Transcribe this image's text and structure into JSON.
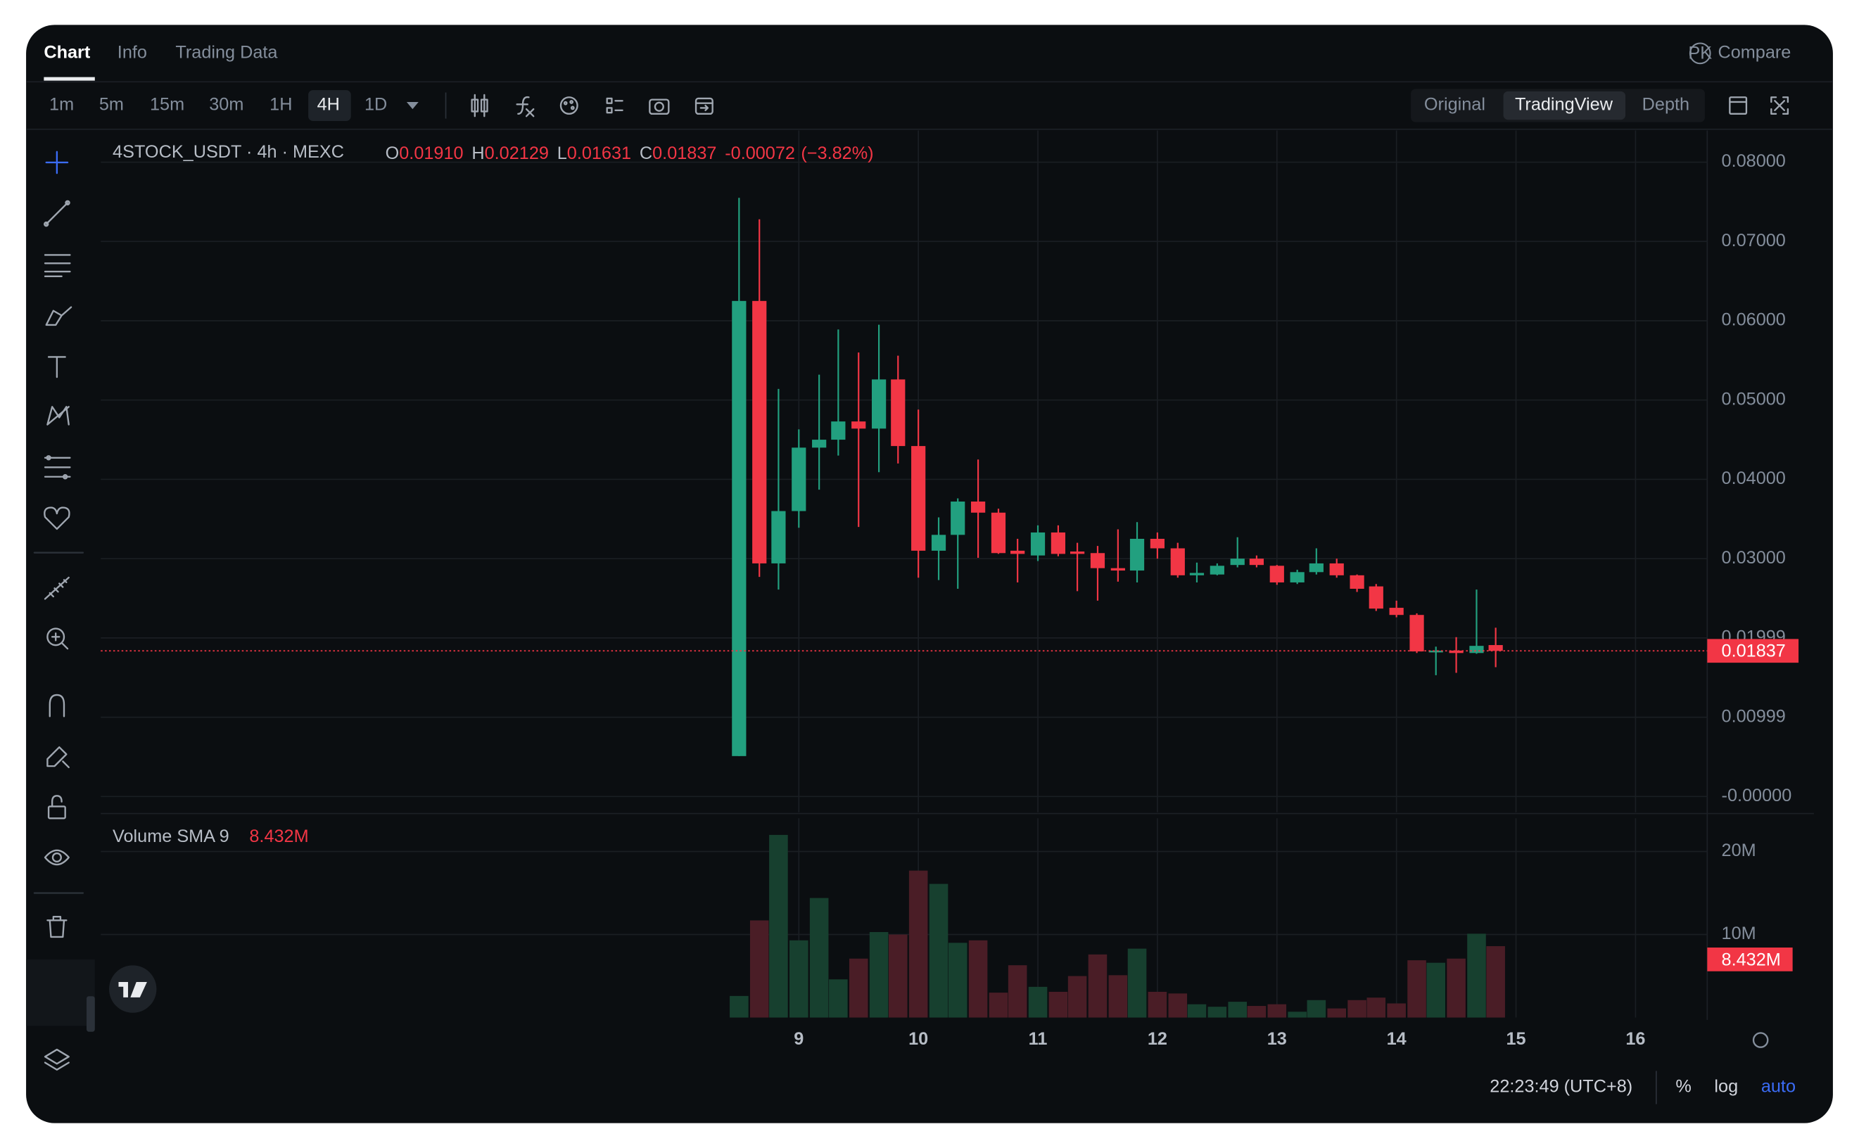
{
  "tabs": [
    "Chart",
    "Info",
    "Trading Data"
  ],
  "compare": {
    "badge": "PK",
    "label": "Compare"
  },
  "intervals": [
    "1m",
    "5m",
    "15m",
    "30m",
    "1H",
    "4H",
    "1D"
  ],
  "views": [
    "Original",
    "TradingView",
    "Depth"
  ],
  "footer": {
    "time": "22:23:49 (UTC+8)",
    "percent": "%",
    "log": "log",
    "auto": "auto"
  },
  "chart_data": [
    {
      "type": "candlestick",
      "title": "4STOCK_USDT · 4h · MEXC",
      "ohlc_header": {
        "letters": [
          "O",
          "H",
          "L",
          "C"
        ],
        "values": [
          "0.01910",
          "0.02129",
          "0.01631",
          "0.01837"
        ],
        "change": "-0.00072",
        "change_pct": "(−3.82%)"
      },
      "x": [
        8.5,
        8.67,
        8.83,
        9,
        9.17,
        9.33,
        9.5,
        9.67,
        9.83,
        10,
        10.17,
        10.33,
        10.5,
        10.67,
        10.83,
        11,
        11.17,
        11.33,
        11.5,
        11.67,
        11.83,
        12,
        12.17,
        12.33,
        12.5,
        12.67,
        12.83,
        13,
        13.17,
        13.33,
        13.5,
        13.67,
        13.83,
        14,
        14.17,
        14.33,
        14.5,
        14.67,
        14.83
      ],
      "open": [
        0.0051,
        0.0625,
        0.0294,
        0.036,
        0.044,
        0.045,
        0.0473,
        0.0464,
        0.0526,
        0.0442,
        0.031,
        0.033,
        0.0372,
        0.0358,
        0.031,
        0.0304,
        0.0333,
        0.0309,
        0.0307,
        0.0288,
        0.0285,
        0.0325,
        0.0313,
        0.0279,
        0.028,
        0.0292,
        0.03,
        0.0291,
        0.027,
        0.0283,
        0.0294,
        0.0279,
        0.0265,
        0.0238,
        0.0229,
        0.0183,
        0.0184,
        0.0181,
        0.0191
      ],
      "high": [
        0.0755,
        0.0728,
        0.0514,
        0.0463,
        0.0532,
        0.0589,
        0.056,
        0.0595,
        0.0556,
        0.0488,
        0.0352,
        0.0376,
        0.0425,
        0.0363,
        0.0325,
        0.0342,
        0.0342,
        0.032,
        0.0316,
        0.0337,
        0.0346,
        0.0333,
        0.032,
        0.0295,
        0.0294,
        0.0327,
        0.0304,
        0.0292,
        0.0286,
        0.0313,
        0.03,
        0.028,
        0.0268,
        0.0247,
        0.0231,
        0.0189,
        0.0201,
        0.0261,
        0.02129
      ],
      "low": [
        0.0051,
        0.0277,
        0.0261,
        0.0339,
        0.0387,
        0.043,
        0.034,
        0.0409,
        0.042,
        0.0276,
        0.0273,
        0.0262,
        0.0301,
        0.0306,
        0.027,
        0.0297,
        0.0303,
        0.0259,
        0.0247,
        0.0271,
        0.027,
        0.03,
        0.0276,
        0.027,
        0.0279,
        0.0289,
        0.0289,
        0.0267,
        0.0268,
        0.028,
        0.0276,
        0.0258,
        0.0234,
        0.0226,
        0.0181,
        0.0153,
        0.0156,
        0.018,
        0.01631
      ],
      "close": [
        0.0625,
        0.0294,
        0.036,
        0.044,
        0.045,
        0.0473,
        0.0464,
        0.0526,
        0.0442,
        0.031,
        0.033,
        0.0372,
        0.0358,
        0.0307,
        0.0306,
        0.0333,
        0.0306,
        0.0306,
        0.0288,
        0.0285,
        0.0325,
        0.0313,
        0.0279,
        0.0282,
        0.0291,
        0.03,
        0.0292,
        0.027,
        0.0283,
        0.0294,
        0.0279,
        0.0262,
        0.0237,
        0.0229,
        0.0183,
        0.0184,
        0.0181,
        0.019,
        0.01837
      ],
      "up_color": "#22a07f",
      "down_color": "#f23645",
      "last_price": 0.01837,
      "xlim": [
        3.16,
        16.6
      ],
      "xticks": [
        9,
        10,
        11,
        12,
        13,
        14,
        15,
        16
      ],
      "ylim": [
        -0.002,
        0.084
      ],
      "yticks": [
        {
          "value": 0.08,
          "label": "0.08000"
        },
        {
          "value": 0.07,
          "label": "0.07000"
        },
        {
          "value": 0.06,
          "label": "0.06000"
        },
        {
          "value": 0.05,
          "label": "0.05000"
        },
        {
          "value": 0.04,
          "label": "0.04000"
        },
        {
          "value": 0.03,
          "label": "0.03000"
        },
        {
          "value": 0.02,
          "label": "0.01999"
        },
        {
          "value": 0.01,
          "label": "0.00999"
        },
        {
          "value": 0,
          "label": "-0.00000"
        }
      ],
      "grid": true
    },
    {
      "type": "bar",
      "title": "Volume SMA 9",
      "sma": {
        "value": 8.432,
        "label": "8.432M"
      },
      "x": [
        8.5,
        8.67,
        8.83,
        9,
        9.17,
        9.33,
        9.5,
        9.67,
        9.83,
        10,
        10.17,
        10.33,
        10.5,
        10.67,
        10.83,
        11,
        11.17,
        11.33,
        11.5,
        11.67,
        11.83,
        12,
        12.17,
        12.33,
        12.5,
        12.67,
        12.83,
        13,
        13.17,
        13.33,
        13.5,
        13.67,
        13.83,
        14,
        14.17,
        14.33,
        14.5,
        14.67,
        14.83
      ],
      "values": [
        2.6,
        11.7,
        22,
        9.3,
        14.4,
        4.6,
        7.1,
        10.3,
        10,
        17.7,
        16.1,
        9,
        9.3,
        3,
        6.3,
        3.7,
        3.1,
        5,
        7.6,
        5.1,
        8.3,
        3.1,
        2.9,
        1.6,
        1.3,
        1.9,
        1.4,
        1.6,
        0.7,
        2.1,
        1.1,
        2.1,
        2.4,
        1.7,
        6.9,
        6.6,
        7.1,
        10.1,
        8.6
      ],
      "up_color": "#17402f",
      "down_color": "#4a1d26",
      "xlim": [
        3.16,
        16.6
      ],
      "ylim": [
        0,
        24
      ],
      "yticks": [
        {
          "value": 10,
          "label": "10M"
        },
        {
          "value": 20,
          "label": "20M"
        }
      ],
      "grid": true
    }
  ]
}
